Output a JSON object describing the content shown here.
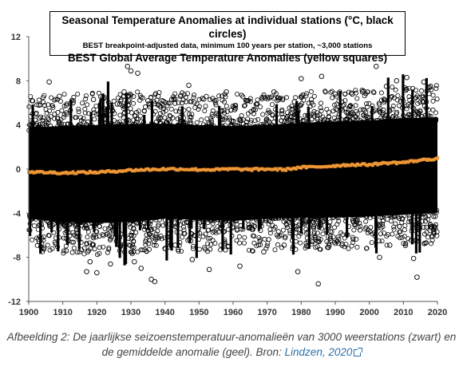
{
  "chart_data": {
    "type": "scatter",
    "title": "Seasonal Temperature Anomalies at individual stations (°C, black circles)",
    "subtitle": "BEST breakpoint-adjusted data, minimum 100 years per station, ~3,000 stations",
    "title2": "BEST Global Average Temperature Anomalies (yellow squares)",
    "xlim": [
      1900,
      2020
    ],
    "ylim": [
      -12,
      12
    ],
    "x_ticks": [
      "1900",
      "1910",
      "1920",
      "1930",
      "1940",
      "1950",
      "1960",
      "1970",
      "1980",
      "1990",
      "2000",
      "2010",
      "2020"
    ],
    "y_ticks": [
      "12",
      "8",
      "4",
      "0",
      "-4",
      "-8",
      "-12"
    ],
    "grid": false,
    "colors": {
      "stations": "#000000",
      "global": "#f4a040"
    },
    "series": [
      {
        "marker": "circle",
        "color": "#000000",
        "description": "dense cloud of station anomalies, bulk roughly -4 to +4",
        "band": {
          "x": [
            1900,
            1910,
            1920,
            1930,
            1940,
            1950,
            1960,
            1970,
            1980,
            1990,
            2000,
            2010,
            2020
          ],
          "low": [
            -4.5,
            -4.8,
            -4.9,
            -4.8,
            -4.5,
            -4.6,
            -4.7,
            -4.5,
            -4.4,
            -4.4,
            -4.3,
            -4.1,
            -4.0
          ],
          "high": [
            3.8,
            3.9,
            4.0,
            4.1,
            4.1,
            4.0,
            3.9,
            4.0,
            4.2,
            4.3,
            4.4,
            4.6,
            4.7
          ]
        },
        "outliers": [
          [
            1901,
            6.2
          ],
          [
            1903,
            5.8
          ],
          [
            1906,
            7.9
          ],
          [
            1908,
            -6.8
          ],
          [
            1909,
            6.6
          ],
          [
            1911,
            -7.4
          ],
          [
            1913,
            6.0
          ],
          [
            1917,
            -9.3
          ],
          [
            1918,
            -8.4
          ],
          [
            1919,
            6.3
          ],
          [
            1920,
            -9.4
          ],
          [
            1922,
            6.4
          ],
          [
            1924,
            -8.6
          ],
          [
            1926,
            5.9
          ],
          [
            1928,
            7.0
          ],
          [
            1929,
            9.3
          ],
          [
            1930,
            8.9
          ],
          [
            1931,
            -8.4
          ],
          [
            1932,
            8.7
          ],
          [
            1933,
            -9.0
          ],
          [
            1935,
            6.2
          ],
          [
            1936,
            -10.0
          ],
          [
            1937,
            -10.2
          ],
          [
            1938,
            6.6
          ],
          [
            1940,
            -7.2
          ],
          [
            1942,
            6.3
          ],
          [
            1943,
            -6.9
          ],
          [
            1945,
            6.0
          ],
          [
            1947,
            7.6
          ],
          [
            1948,
            -8.2
          ],
          [
            1951,
            6.4
          ],
          [
            1953,
            -9.1
          ],
          [
            1954,
            6.4
          ],
          [
            1958,
            7.0
          ],
          [
            1960,
            5.7
          ],
          [
            1962,
            -8.8
          ],
          [
            1964,
            6.2
          ],
          [
            1967,
            5.9
          ],
          [
            1969,
            -7.5
          ],
          [
            1972,
            7.0
          ],
          [
            1975,
            -6.9
          ],
          [
            1978,
            6.1
          ],
          [
            1979,
            -9.3
          ],
          [
            1980,
            8.2
          ],
          [
            1983,
            6.3
          ],
          [
            1985,
            -10.4
          ],
          [
            1986,
            8.4
          ],
          [
            1988,
            -7.1
          ],
          [
            1990,
            6.8
          ],
          [
            1992,
            -6.9
          ],
          [
            1995,
            6.8
          ],
          [
            1998,
            7.0
          ],
          [
            2002,
            9.3
          ],
          [
            2003,
            -8.0
          ],
          [
            2005,
            7.5
          ],
          [
            2006,
            -6.9
          ],
          [
            2008,
            8.0
          ],
          [
            2011,
            8.3
          ],
          [
            2013,
            -8.1
          ],
          [
            2014,
            -9.8
          ],
          [
            2016,
            7.9
          ],
          [
            2018,
            7.5
          ],
          [
            2019,
            -5.2
          ]
        ]
      },
      {
        "marker": "square",
        "color": "#f4a040",
        "x": [
          1900,
          1905,
          1910,
          1915,
          1920,
          1925,
          1930,
          1935,
          1940,
          1945,
          1950,
          1955,
          1960,
          1965,
          1970,
          1975,
          1980,
          1985,
          1990,
          1995,
          2000,
          2005,
          2010,
          2015,
          2020
        ],
        "values": [
          -0.25,
          -0.3,
          -0.35,
          -0.3,
          -0.3,
          -0.2,
          -0.1,
          -0.05,
          0.0,
          0.0,
          -0.05,
          -0.05,
          0.0,
          -0.05,
          0.0,
          -0.05,
          0.15,
          0.2,
          0.3,
          0.4,
          0.4,
          0.55,
          0.6,
          0.8,
          0.95
        ]
      }
    ]
  },
  "caption": {
    "text": "Afbeelding 2: De jaarlijkse seizoenstemperatuur-anomalieën van 3000 weerstations (zwart) en de gemiddelde anomalie (geel). Bron: ",
    "link_text": "Lindzen, 2020",
    "link_icon": "external-link-icon"
  }
}
